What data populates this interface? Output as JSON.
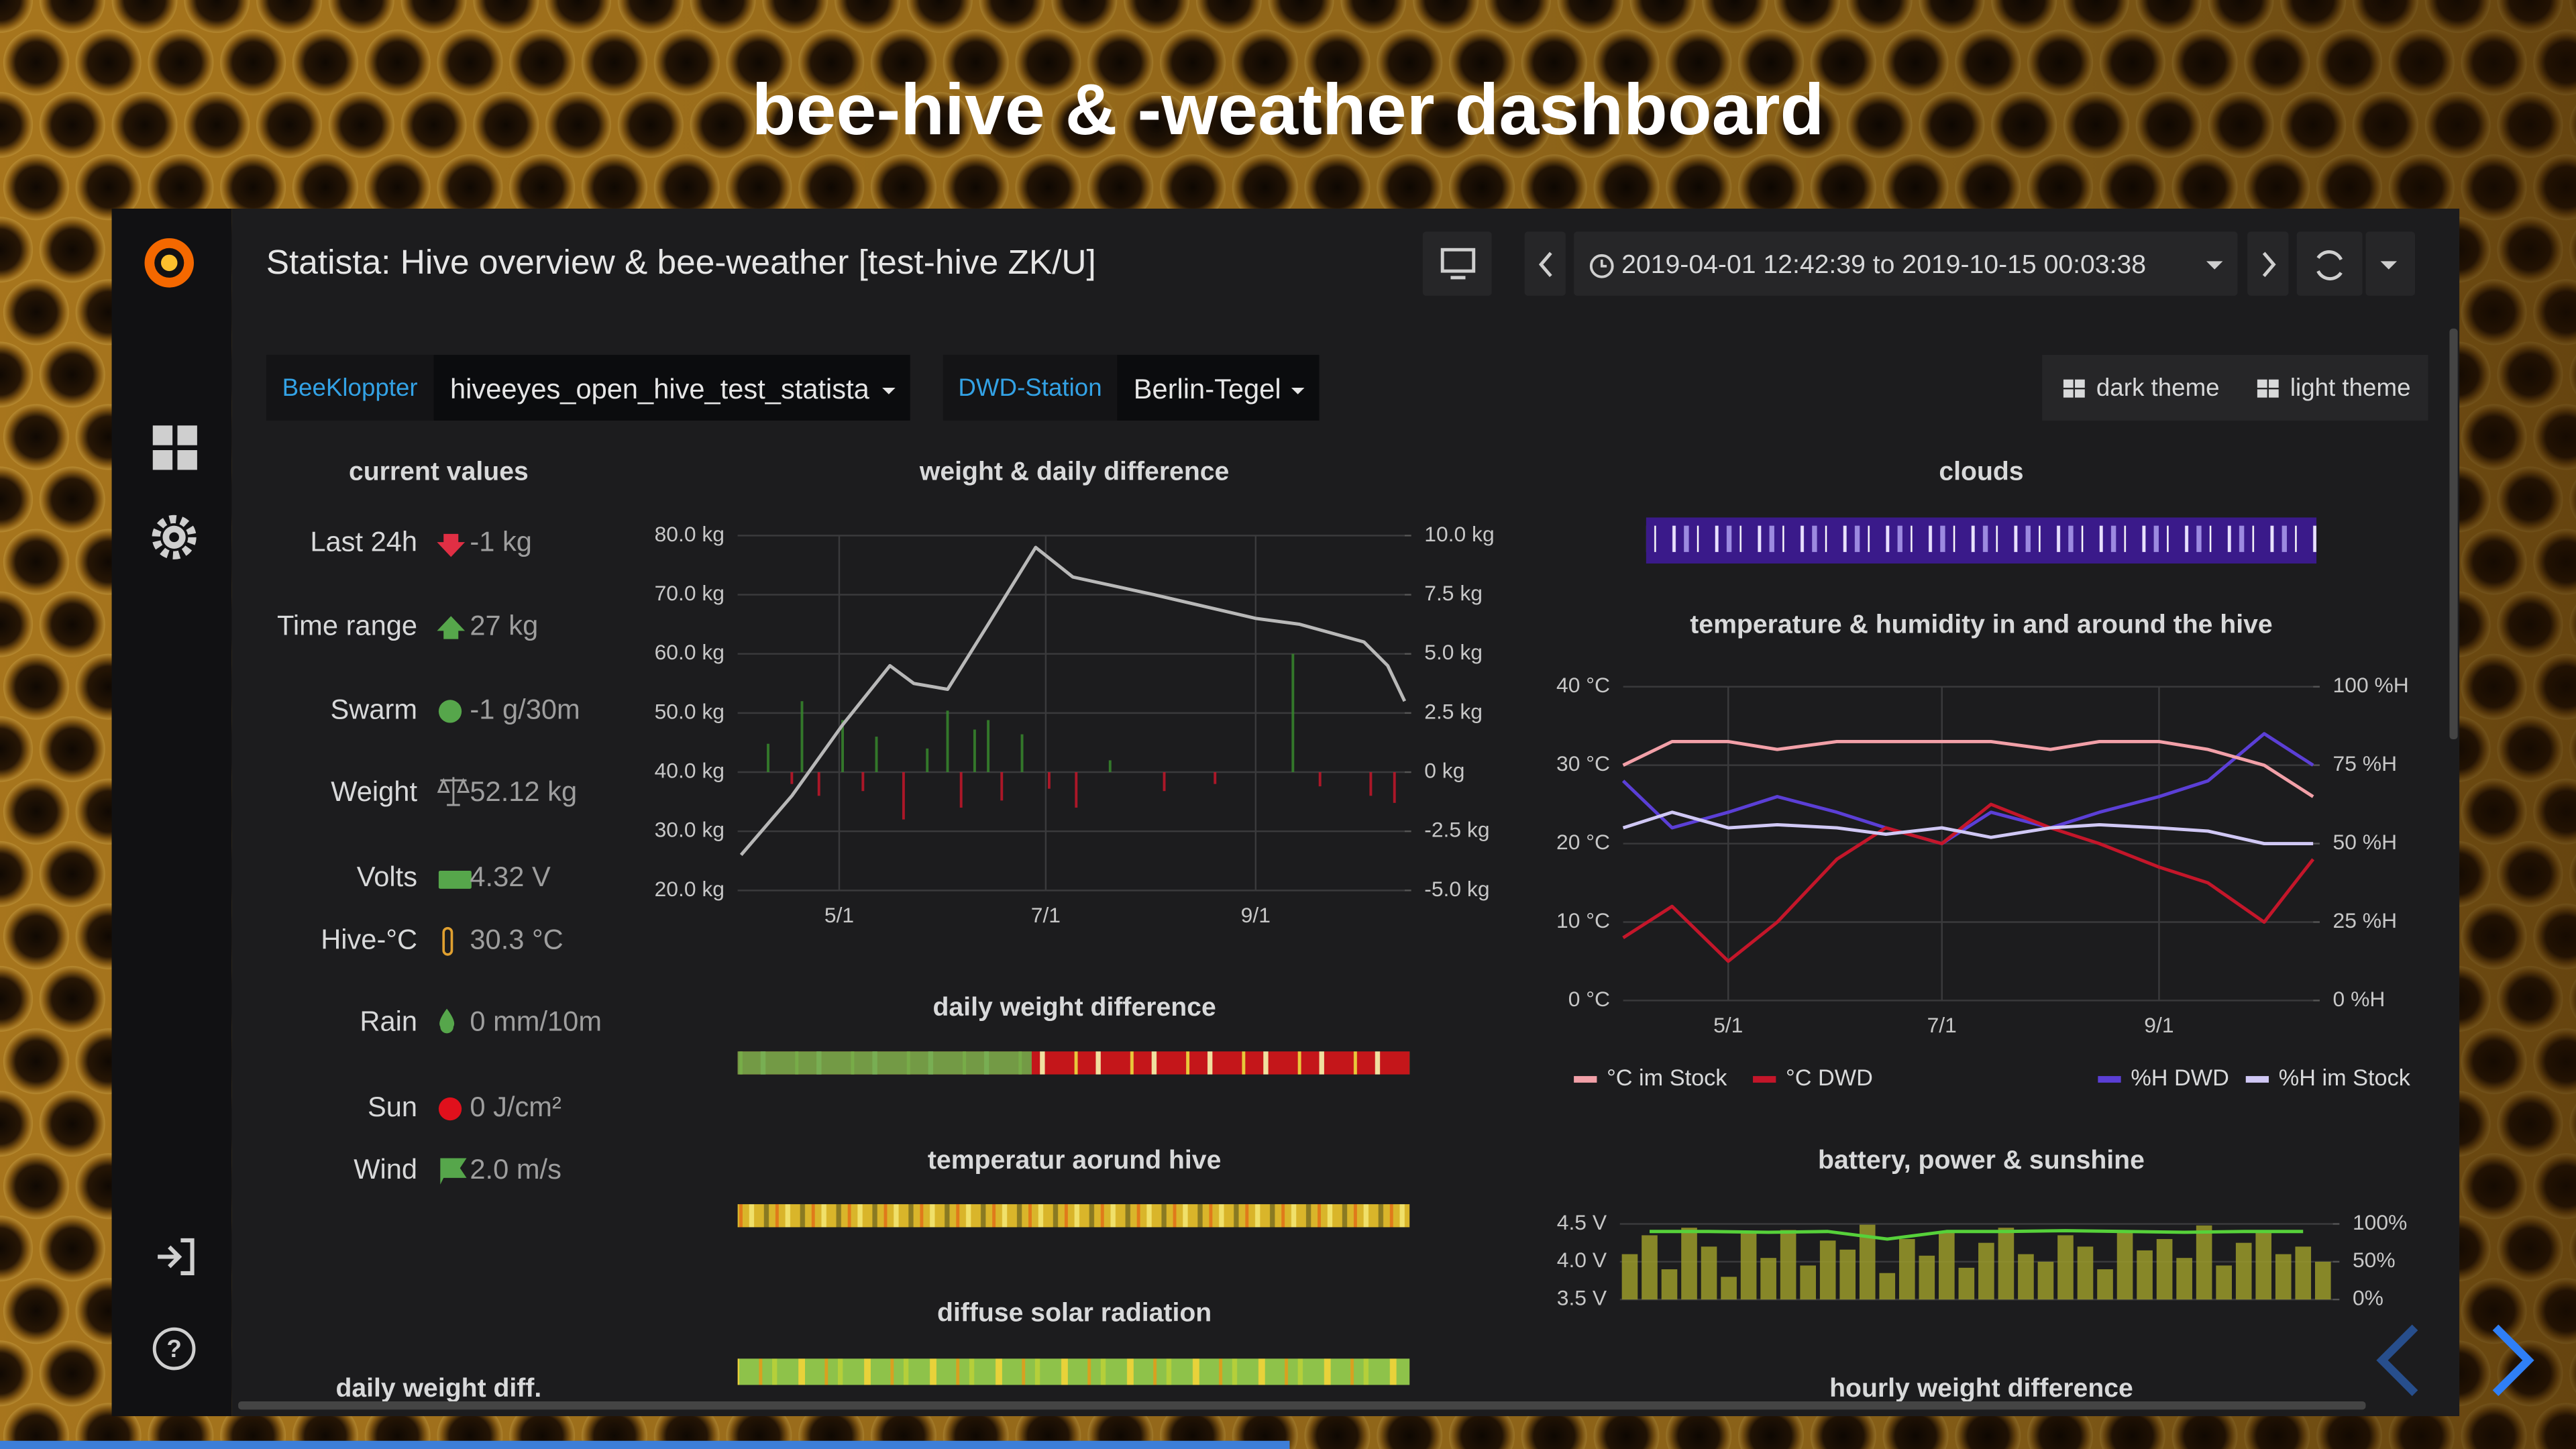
{
  "slide_title": "bee-hive & -weather dashboard",
  "dashboard": {
    "title": "Statista: Hive overview & bee-weather [test-hive ZK/U]",
    "time_range": "2019-04-01 12:42:39 to 2019-10-15 00:03:38",
    "variables": [
      {
        "label": "BeeKloppter",
        "value": "hiveeyes_open_hive_test_statista"
      },
      {
        "label": "DWD-Station",
        "value": "Berlin-Tegel"
      }
    ],
    "theme_links": [
      "dark theme",
      "light theme"
    ],
    "current_values": {
      "title": "current values",
      "rows": [
        {
          "label": "Last 24h",
          "value": "-1 kg"
        },
        {
          "label": "Time range",
          "value": "27 kg"
        },
        {
          "label": "Swarm",
          "value": "-1 g/30m"
        },
        {
          "label": "Weight",
          "value": "52.12 kg"
        },
        {
          "label": "Volts",
          "value": "4.32 V"
        },
        {
          "label": "Hive-°C",
          "value": "30.3 °C"
        },
        {
          "label": "Rain",
          "value": "0 mm/10m"
        },
        {
          "label": "Sun",
          "value": "0 J/cm²"
        },
        {
          "label": "Wind",
          "value": "2.0 m/s"
        }
      ]
    },
    "weight_chart": {
      "type": "line",
      "title": "weight & daily difference",
      "xlim": [
        "4/1",
        "10/15"
      ],
      "xticks": [
        "5/1",
        "7/1",
        "9/1"
      ],
      "ylim": [
        20,
        80
      ],
      "yticks": [
        {
          "value": 20,
          "label": "20.0 kg"
        },
        {
          "value": 30,
          "label": "30.0 kg"
        },
        {
          "value": 40,
          "label": "40.0 kg"
        },
        {
          "value": 50,
          "label": "50.0 kg"
        },
        {
          "value": 60,
          "label": "60.0 kg"
        },
        {
          "value": 70,
          "label": "70.0 kg"
        },
        {
          "value": 80,
          "label": "80.0 kg"
        }
      ],
      "y2lim": [
        -5,
        10
      ],
      "y2ticks": [
        {
          "value": -5,
          "label": "-5.0 kg"
        },
        {
          "value": -2.5,
          "label": "-2.5 kg"
        },
        {
          "value": 0,
          "label": "0 kg"
        },
        {
          "value": 2.5,
          "label": "2.5 kg"
        },
        {
          "value": 5,
          "label": "5.0 kg"
        },
        {
          "value": 7.5,
          "label": "7.5 kg"
        },
        {
          "value": 10,
          "label": "10.0 kg"
        }
      ],
      "grid": true,
      "series": [
        {
          "type": "bar",
          "axis": "y2",
          "color": "#37872d",
          "negative_color": "#c4162a",
          "x": [
            "4/10",
            "4/17",
            "4/20",
            "4/25",
            "5/2",
            "5/8",
            "5/12",
            "5/20",
            "5/27",
            "6/2",
            "6/6",
            "6/10",
            "6/14",
            "6/18",
            "6/24",
            "7/2",
            "7/10",
            "7/20",
            "8/5",
            "8/20",
            "9/12",
            "9/20",
            "10/5",
            "10/12"
          ],
          "values": [
            1.2,
            -0.5,
            3,
            -1,
            2.2,
            -0.8,
            1.5,
            -2,
            1,
            2.6,
            -1.5,
            1.8,
            2.2,
            -1.2,
            1.6,
            -0.7,
            -1.5,
            0.5,
            -0.8,
            -0.5,
            5,
            -0.6,
            -1,
            -1.3
          ]
        },
        {
          "type": "line",
          "color": "#b8b8b8",
          "x": [
            "4/2",
            "4/17",
            "5/2",
            "5/16",
            "5/23",
            "6/2",
            "6/14",
            "6/28",
            "7/9",
            "8/2",
            "9/1",
            "9/14",
            "10/3",
            "10/10",
            "10/15"
          ],
          "values": [
            26,
            36,
            48,
            58,
            55,
            54,
            65,
            78,
            73,
            70,
            66,
            65,
            62,
            58,
            52
          ]
        }
      ]
    },
    "clouds_title": "clouds",
    "daily_weight_difference_title": "daily weight difference",
    "temperature_strip_title": "temperatur aorund hive",
    "solar_title": "diffuse solar radiation",
    "daily_weight_diff_title": "daily weight diff.",
    "hourly_weight_difference_title": "hourly weight difference",
    "temp_chart": {
      "type": "line",
      "title": "temperature & humidity in and around the hive",
      "xlim": [
        "4/1",
        "10/15"
      ],
      "xticks": [
        "5/1",
        "7/1",
        "9/1"
      ],
      "ylim": [
        0,
        40
      ],
      "yticks": [
        {
          "value": 0,
          "label": "0 °C"
        },
        {
          "value": 10,
          "label": "10 °C"
        },
        {
          "value": 20,
          "label": "20 °C"
        },
        {
          "value": 30,
          "label": "30 °C"
        },
        {
          "value": 40,
          "label": "40 °C"
        }
      ],
      "y2lim": [
        0,
        100
      ],
      "y2ticks": [
        {
          "value": 0,
          "label": "0 %H"
        },
        {
          "value": 25,
          "label": "25 %H"
        },
        {
          "value": 50,
          "label": "50 %H"
        },
        {
          "value": 75,
          "label": "75 %H"
        },
        {
          "value": 100,
          "label": "100 %H"
        }
      ],
      "grid": true,
      "legend": "bottom",
      "series": [
        {
          "name": "%H DWD",
          "color": "#5b3fd6",
          "axis": "y2",
          "x": [
            "4/1",
            "4/15",
            "5/1",
            "5/15",
            "6/1",
            "6/15",
            "7/1",
            "7/15",
            "8/1",
            "8/15",
            "9/1",
            "9/15",
            "10/1",
            "10/15"
          ],
          "values": [
            70,
            55,
            60,
            65,
            60,
            55,
            50,
            60,
            55,
            60,
            65,
            70,
            85,
            75
          ]
        },
        {
          "name": "°C DWD",
          "color": "#c4162a",
          "x": [
            "4/1",
            "4/15",
            "5/1",
            "5/15",
            "6/1",
            "6/15",
            "7/1",
            "7/15",
            "8/1",
            "8/15",
            "9/1",
            "9/15",
            "10/1",
            "10/15"
          ],
          "values": [
            8,
            12,
            5,
            10,
            18,
            22,
            20,
            25,
            22,
            20,
            17,
            15,
            10,
            18
          ]
        },
        {
          "name": "%H im Stock",
          "color": "#d0c8f5",
          "axis": "y2",
          "x": [
            "4/1",
            "4/15",
            "5/1",
            "5/15",
            "6/1",
            "6/15",
            "7/1",
            "7/15",
            "8/1",
            "8/15",
            "9/1",
            "9/15",
            "10/1",
            "10/15"
          ],
          "values": [
            55,
            60,
            55,
            56,
            55,
            53,
            55,
            52,
            55,
            56,
            55,
            54,
            50,
            50
          ]
        },
        {
          "name": "°C im Stock",
          "color": "#f2a0a8",
          "x": [
            "4/1",
            "4/15",
            "5/1",
            "5/15",
            "6/1",
            "6/15",
            "7/1",
            "7/15",
            "8/1",
            "8/15",
            "9/1",
            "9/15",
            "10/1",
            "10/15"
          ],
          "values": [
            30,
            33,
            33,
            32,
            33,
            33,
            33,
            33,
            32,
            33,
            33,
            32,
            30,
            26
          ]
        }
      ]
    },
    "battery_chart": {
      "type": "line",
      "title": "battery, power & sunshine",
      "ylim": [
        3.5,
        4.5
      ],
      "yticks": [
        {
          "value": 3.5,
          "label": "3.5 V"
        },
        {
          "value": 4,
          "label": "4.0 V"
        },
        {
          "value": 4.5,
          "label": "4.5 V"
        }
      ],
      "y2lim": [
        0,
        100
      ],
      "y2ticks": [
        {
          "value": 0,
          "label": "0%"
        },
        {
          "value": 50,
          "label": "50%"
        },
        {
          "value": 100,
          "label": "100%"
        }
      ],
      "grid": true,
      "series": [
        {
          "type": "bar",
          "axis": "y2",
          "color": "#9a9a2a",
          "values": [
            60,
            85,
            40,
            95,
            70,
            30,
            88,
            55,
            92,
            45,
            78,
            66,
            99,
            35,
            80,
            58,
            90,
            42,
            75,
            95,
            60,
            50,
            85,
            70,
            40,
            92,
            65,
            80,
            55,
            98,
            45,
            75,
            88,
            60,
            70,
            50
          ]
        },
        {
          "type": "line",
          "color": "#56d13a",
          "values": [
            4.4,
            4.4,
            4.39,
            4.4,
            4.3,
            4.4,
            4.4,
            4.41,
            4.4,
            4.39,
            4.4,
            4.4
          ]
        }
      ]
    }
  }
}
